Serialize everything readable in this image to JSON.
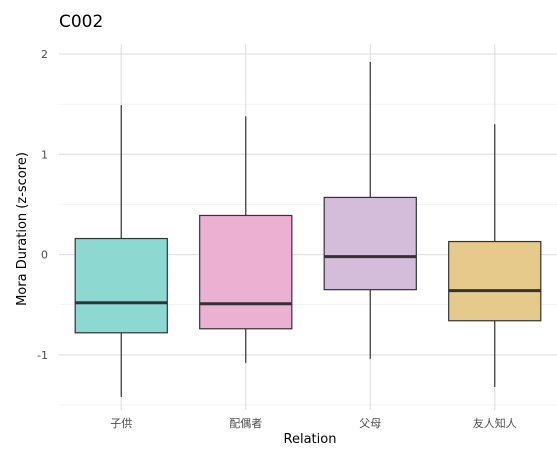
{
  "chart_data": {
    "type": "boxplot",
    "title": "C002",
    "xlabel": "Relation",
    "ylabel": "Mora Duration (z-score)",
    "ylim": [
      -1.55,
      2.1
    ],
    "yticks": [
      -1,
      0,
      1,
      2
    ],
    "ytick_labels": [
      "-1",
      "0",
      "1",
      "2"
    ],
    "grid": true,
    "categories": [
      "子供",
      "配偶者",
      "父母",
      "友人知人"
    ],
    "boxes": [
      {
        "category": "子供",
        "whisker_low": -1.42,
        "q1": -0.78,
        "median": -0.48,
        "q3": 0.16,
        "whisker_high": 1.49,
        "color": "#8dd9d2"
      },
      {
        "category": "配偶者",
        "whisker_low": -1.08,
        "q1": -0.74,
        "median": -0.49,
        "q3": 0.39,
        "whisker_high": 1.38,
        "color": "#ecb1d2"
      },
      {
        "category": "父母",
        "whisker_low": -1.04,
        "q1": -0.35,
        "median": -0.02,
        "q3": 0.57,
        "whisker_high": 1.92,
        "color": "#d4bcdb"
      },
      {
        "category": "友人知人",
        "whisker_low": -1.32,
        "q1": -0.66,
        "median": -0.36,
        "q3": 0.13,
        "whisker_high": 1.3,
        "color": "#e5ca8b"
      }
    ]
  }
}
